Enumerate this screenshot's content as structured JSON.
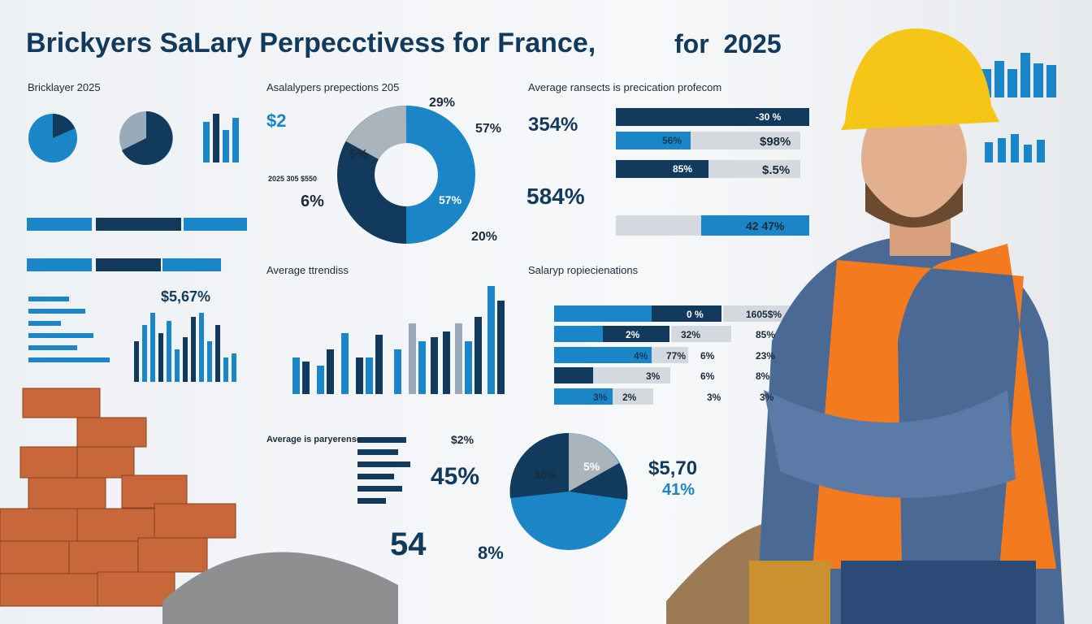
{
  "header": {
    "title": "Brickyers SaLary Perpecctivess for France,",
    "year": "for  2025"
  },
  "panels": [
    {
      "heading": "Bricklayer 2025",
      "labels": [
        "$5,67%"
      ]
    },
    {
      "heading": "Asalalypers prepections 205",
      "labels": [
        "$2",
        "29%",
        "57%",
        "5%",
        "2025 305 $550",
        "6%",
        "57%",
        "20%"
      ]
    },
    {
      "heading": "Average ransects is precication profecom",
      "labels": [
        "354%",
        "-30 %",
        "56%",
        "$98%",
        "85%",
        "$.5%",
        "584%",
        "42 47%"
      ]
    },
    {
      "heading": "Average ttrendiss",
      "labels": []
    },
    {
      "heading": "Salaryp ropiecienations",
      "labels": [
        "0 %",
        "1605$%",
        "2%",
        "32%",
        "85%",
        "4%",
        "77%",
        "6%",
        "23%",
        "3%",
        "6%",
        "8%",
        "3%",
        "2%",
        "3%",
        "3%"
      ]
    },
    {
      "heading": "Average is paryerense",
      "labels": [
        "$2%",
        "45%",
        "10%",
        "5%",
        "$5,70",
        "41%",
        "54",
        "8%"
      ]
    }
  ]
}
